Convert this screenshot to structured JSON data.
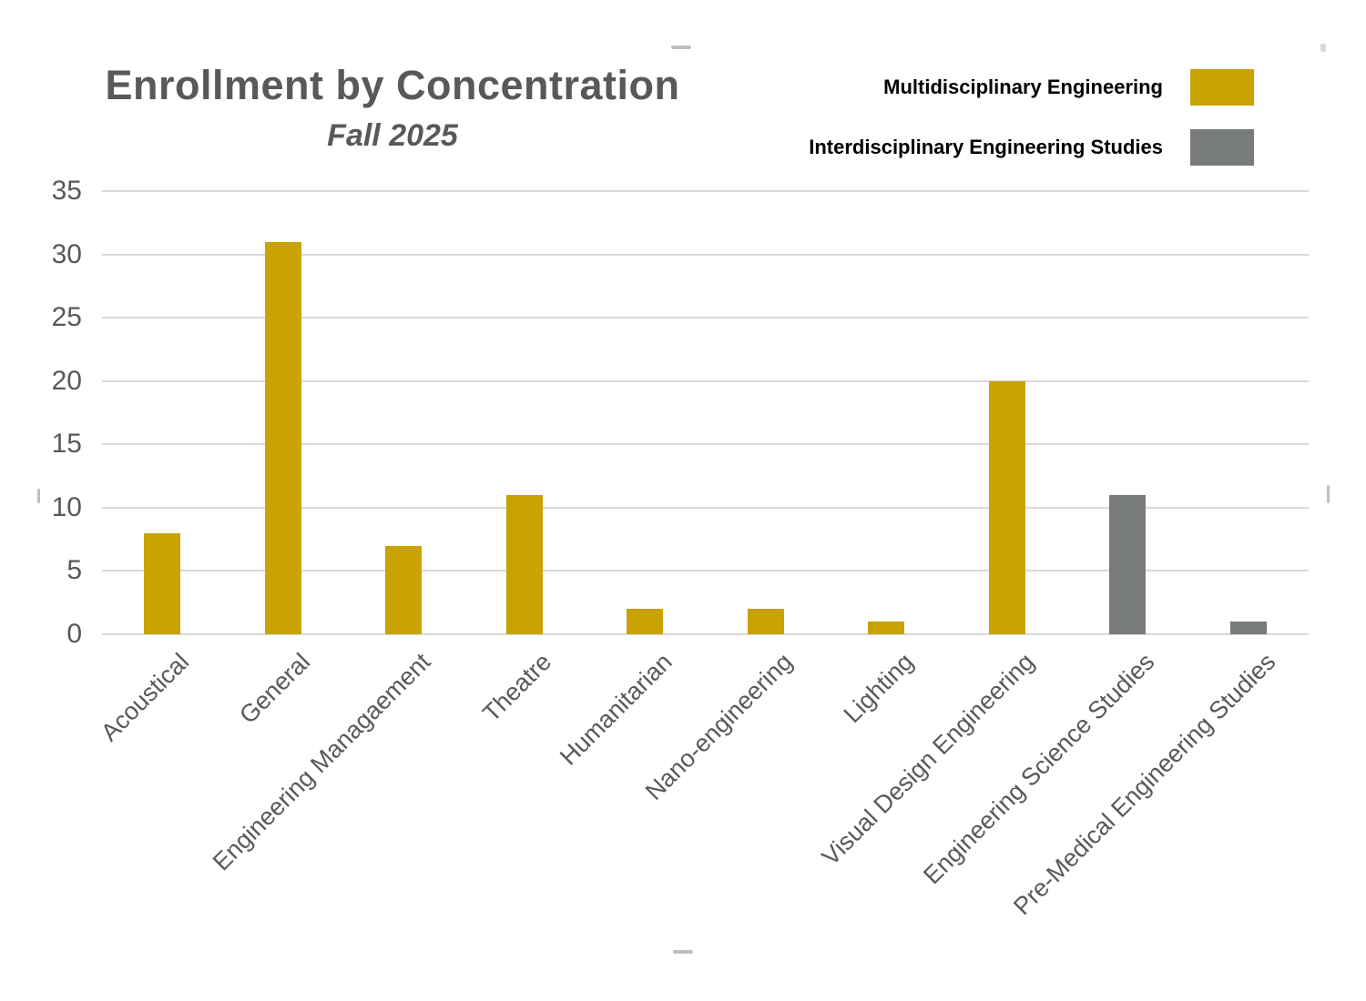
{
  "header": {
    "title": "Enrollment by Concentration",
    "subtitle": "Fall 2025"
  },
  "legend": {
    "items": [
      {
        "label": "Multidisciplinary Engineering",
        "color": "#C9A203"
      },
      {
        "label": "Interdisciplinary Engineering Studies",
        "color": "#777B7C"
      }
    ]
  },
  "chart_data": {
    "type": "bar",
    "title": "Enrollment by Concentration",
    "subtitle": "Fall 2025",
    "categories": [
      "Acoustical",
      "General",
      "Engineering Managaement",
      "Theatre",
      "Humanitarian",
      "Nano-engineering",
      "Lighting",
      "Visual Design Engineering",
      "Engineering Science Studies",
      "Pre-Medical Engineering Studies"
    ],
    "series": [
      {
        "name": "Multidisciplinary Engineering",
        "color": "#C9A203",
        "values": [
          8,
          31,
          7,
          11,
          2,
          2,
          1,
          20,
          null,
          null
        ]
      },
      {
        "name": "Interdisciplinary Engineering Studies",
        "color": "#777B7C",
        "values": [
          null,
          null,
          null,
          null,
          null,
          null,
          null,
          null,
          11,
          1
        ]
      }
    ],
    "xlabel": "",
    "ylabel": "",
    "ylim": [
      0,
      35
    ],
    "yticks": [
      0,
      5,
      10,
      15,
      20,
      25,
      30,
      35
    ],
    "grid": true,
    "gridline_color": "#D9D9D9",
    "axis_text_color": "#595959",
    "legend_position": "top-right"
  }
}
